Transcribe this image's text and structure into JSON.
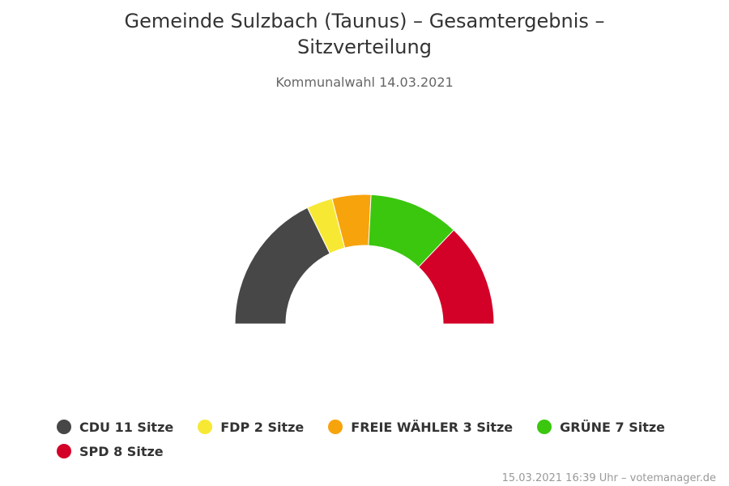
{
  "chart_data": {
    "type": "pie",
    "variant": "semicircle",
    "title": "Gemeinde Sulzbach (Taunus) – Gesamtergebnis – Sitzverteilung",
    "subtitle": "Kommunalwahl 14.03.2021",
    "series": [
      {
        "name": "CDU",
        "value": 11,
        "color": "#474747",
        "legend": "CDU 11 Sitze"
      },
      {
        "name": "FDP",
        "value": 2,
        "color": "#f7e834",
        "legend": "FDP 2 Sitze"
      },
      {
        "name": "FREIE WÄHLER",
        "value": 3,
        "color": "#f7a30c",
        "legend": "FREIE WÄHLER 3 Sitze"
      },
      {
        "name": "GRÜNE",
        "value": 7,
        "color": "#3ac70e",
        "legend": "GRÜNE 7 Sitze"
      },
      {
        "name": "SPD",
        "value": 8,
        "color": "#d30128",
        "legend": "SPD 8 Sitze"
      }
    ],
    "legend_placement": "bottom",
    "credits": "15.03.2021 16:39 Uhr – votemanager.de"
  }
}
